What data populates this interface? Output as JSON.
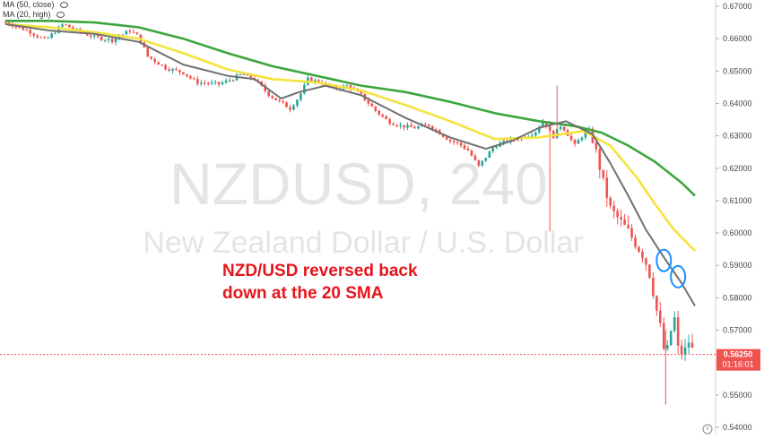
{
  "legend": {
    "items": [
      {
        "label": "MA (50, close)"
      },
      {
        "label": "MA (20, high)"
      }
    ]
  },
  "watermark": {
    "line1": "NZDUSD, 240",
    "line2": "New Zealand Dollar / U.S. Dollar"
  },
  "annotation": {
    "line1": "NZD/USD reversed back",
    "line2": "down at the 20 SMA"
  },
  "price_tag": {
    "value": "0.56250",
    "countdown": "01:16:01"
  },
  "colors": {
    "up": "#26a69a",
    "down": "#ef5350",
    "ma_green": "#3ca63c",
    "ma_yellow": "#f5e33c",
    "ma_gray": "#707070",
    "circle": "#1e90ff",
    "annotation": "#e8141c",
    "price_tag": "#ef5350"
  },
  "chart_data": {
    "type": "line",
    "title": "NZDUSD, 240",
    "subtitle": "New Zealand Dollar / U.S. Dollar",
    "xlabel": "",
    "ylabel": "",
    "ylim": [
      0.538,
      0.671
    ],
    "y_ticks": [
      "0.67000",
      "0.66000",
      "0.65000",
      "0.64000",
      "0.63000",
      "0.62000",
      "0.61000",
      "0.60000",
      "0.59000",
      "0.58000",
      "0.57000",
      "0.56000",
      "0.55000",
      "0.54000"
    ],
    "grid": false,
    "price_series": [
      [
        0,
        0.665
      ],
      [
        25,
        0.6625
      ],
      [
        45,
        0.6595
      ],
      [
        65,
        0.6645
      ],
      [
        80,
        0.6625
      ],
      [
        100,
        0.6605
      ],
      [
        120,
        0.6595
      ],
      [
        140,
        0.6625
      ],
      [
        150,
        0.6605
      ],
      [
        160,
        0.6545
      ],
      [
        180,
        0.651
      ],
      [
        200,
        0.6495
      ],
      [
        215,
        0.6465
      ],
      [
        240,
        0.646
      ],
      [
        255,
        0.6475
      ],
      [
        265,
        0.649
      ],
      [
        280,
        0.6475
      ],
      [
        295,
        0.643
      ],
      [
        305,
        0.641
      ],
      [
        320,
        0.6385
      ],
      [
        330,
        0.642
      ],
      [
        340,
        0.6475
      ],
      [
        355,
        0.6465
      ],
      [
        370,
        0.6445
      ],
      [
        385,
        0.6455
      ],
      [
        400,
        0.6425
      ],
      [
        415,
        0.638
      ],
      [
        430,
        0.6345
      ],
      [
        445,
        0.633
      ],
      [
        460,
        0.6325
      ],
      [
        475,
        0.6335
      ],
      [
        490,
        0.6305
      ],
      [
        500,
        0.6285
      ],
      [
        510,
        0.6275
      ],
      [
        520,
        0.6255
      ],
      [
        532,
        0.6205
      ],
      [
        540,
        0.6235
      ],
      [
        550,
        0.627
      ],
      [
        565,
        0.6285
      ],
      [
        580,
        0.6295
      ],
      [
        595,
        0.631
      ],
      [
        605,
        0.635
      ],
      [
        615,
        0.6295
      ],
      [
        625,
        0.6335
      ],
      [
        640,
        0.627
      ],
      [
        655,
        0.6325
      ],
      [
        665,
        0.624
      ],
      [
        672,
        0.6155
      ],
      [
        680,
        0.6075
      ],
      [
        690,
        0.604
      ],
      [
        700,
        0.6005
      ],
      [
        710,
        0.596
      ],
      [
        718,
        0.5925
      ],
      [
        725,
        0.5865
      ],
      [
        732,
        0.576
      ],
      [
        738,
        0.5685
      ],
      [
        742,
        0.56
      ],
      [
        746,
        0.568
      ],
      [
        752,
        0.5735
      ],
      [
        755,
        0.5645
      ],
      [
        762,
        0.5625
      ],
      [
        768,
        0.5665
      ],
      [
        774,
        0.5625
      ]
    ],
    "series": [
      {
        "name": "MA (50, close)",
        "color": "#3ca63c",
        "points": [
          [
            0,
            0.6655
          ],
          [
            50,
            0.6655
          ],
          [
            100,
            0.665
          ],
          [
            150,
            0.6635
          ],
          [
            200,
            0.66
          ],
          [
            250,
            0.6555
          ],
          [
            300,
            0.6515
          ],
          [
            350,
            0.6485
          ],
          [
            400,
            0.6455
          ],
          [
            450,
            0.6435
          ],
          [
            500,
            0.6405
          ],
          [
            550,
            0.637
          ],
          [
            600,
            0.6345
          ],
          [
            640,
            0.633
          ],
          [
            670,
            0.631
          ],
          [
            700,
            0.627
          ],
          [
            730,
            0.622
          ],
          [
            760,
            0.6155
          ],
          [
            775,
            0.6115
          ]
        ]
      },
      {
        "name": "MA (20, high)",
        "color": "#f5e33c",
        "points": [
          [
            0,
            0.6645
          ],
          [
            50,
            0.6635
          ],
          [
            100,
            0.662
          ],
          [
            150,
            0.66
          ],
          [
            200,
            0.6555
          ],
          [
            250,
            0.6505
          ],
          [
            300,
            0.6475
          ],
          [
            350,
            0.6465
          ],
          [
            400,
            0.644
          ],
          [
            450,
            0.6395
          ],
          [
            500,
            0.6345
          ],
          [
            550,
            0.629
          ],
          [
            600,
            0.6295
          ],
          [
            650,
            0.6315
          ],
          [
            680,
            0.627
          ],
          [
            710,
            0.617
          ],
          [
            730,
            0.609
          ],
          [
            750,
            0.6015
          ],
          [
            775,
            0.5945
          ]
        ]
      },
      {
        "name": "",
        "color": "#707070",
        "points": [
          [
            0,
            0.6645
          ],
          [
            50,
            0.6625
          ],
          [
            100,
            0.6615
          ],
          [
            150,
            0.659
          ],
          [
            200,
            0.652
          ],
          [
            250,
            0.6485
          ],
          [
            280,
            0.6475
          ],
          [
            310,
            0.6415
          ],
          [
            330,
            0.6435
          ],
          [
            360,
            0.6455
          ],
          [
            400,
            0.6425
          ],
          [
            450,
            0.6355
          ],
          [
            500,
            0.6295
          ],
          [
            540,
            0.626
          ],
          [
            570,
            0.6285
          ],
          [
            600,
            0.6325
          ],
          [
            630,
            0.6345
          ],
          [
            660,
            0.6305
          ],
          [
            680,
            0.6215
          ],
          [
            700,
            0.6115
          ],
          [
            720,
            0.601
          ],
          [
            740,
            0.5925
          ],
          [
            760,
            0.5845
          ],
          [
            775,
            0.5775
          ]
        ]
      }
    ],
    "annotations": [
      "NZD/USD reversed back",
      "down at the 20 SMA"
    ],
    "last_price": 0.5625
  }
}
